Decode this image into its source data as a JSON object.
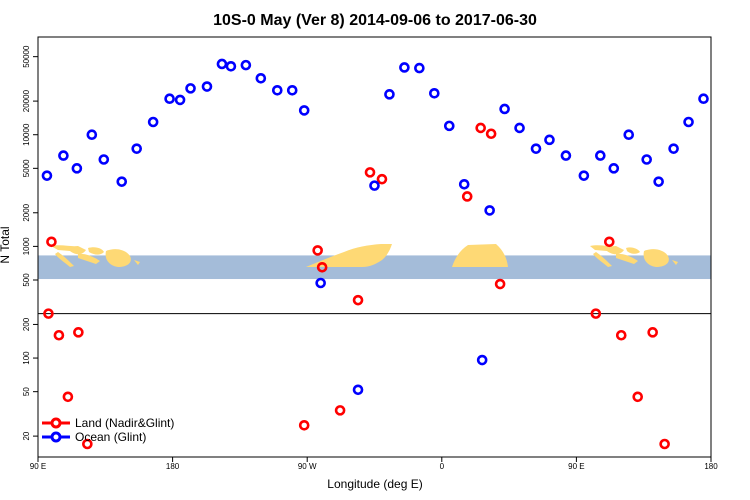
{
  "chart_data": {
    "type": "scatter",
    "title": "10S-0 May (Ver 8)   2014-09-06 to 2017-06-30",
    "xlabel": "Longitude (deg E)",
    "ylabel": "N Total",
    "yscale": "log",
    "xlim": [
      90,
      540
    ],
    "ylim": [
      13,
      75000
    ],
    "x_ticks": [
      {
        "value": 90,
        "label": "90 E"
      },
      {
        "value": 180,
        "label": "180"
      },
      {
        "value": 270,
        "label": "90 W"
      },
      {
        "value": 360,
        "label": "0"
      },
      {
        "value": 450,
        "label": "90 E"
      },
      {
        "value": 540,
        "label": "180"
      }
    ],
    "y_ticks": [
      {
        "value": 20,
        "label": "20"
      },
      {
        "value": 50,
        "label": "50"
      },
      {
        "value": 100,
        "label": "100"
      },
      {
        "value": 200,
        "label": "200"
      },
      {
        "value": 500,
        "label": "500"
      },
      {
        "value": 1000,
        "label": "1000"
      },
      {
        "value": 2000,
        "label": "2000"
      },
      {
        "value": 5000,
        "label": "5000"
      },
      {
        "value": 10000,
        "label": "10000"
      },
      {
        "value": 20000,
        "label": "20000"
      },
      {
        "value": 50000,
        "label": "50000"
      }
    ],
    "reference_line": 250,
    "map_band": {
      "y_low": 510,
      "y_high": 830,
      "ocean_color": "#a4bcd9",
      "land_color": "#fed975"
    },
    "legend": {
      "position": "bottom-left"
    },
    "series": [
      {
        "name": "Land (Nadir&Glint)",
        "color": "#ff0000",
        "points": [
          {
            "x": 97,
            "y": 250
          },
          {
            "x": 99,
            "y": 1100
          },
          {
            "x": 104,
            "y": 160
          },
          {
            "x": 110,
            "y": 45
          },
          {
            "x": 117,
            "y": 170
          },
          {
            "x": 123,
            "y": 17
          },
          {
            "x": 268,
            "y": 25
          },
          {
            "x": 277,
            "y": 920
          },
          {
            "x": 280,
            "y": 650
          },
          {
            "x": 292,
            "y": 34
          },
          {
            "x": 304,
            "y": 330
          },
          {
            "x": 312,
            "y": 4600
          },
          {
            "x": 320,
            "y": 4000
          },
          {
            "x": 377,
            "y": 2800
          },
          {
            "x": 386,
            "y": 11500
          },
          {
            "x": 393,
            "y": 10200
          },
          {
            "x": 399,
            "y": 460
          },
          {
            "x": 463,
            "y": 250
          },
          {
            "x": 472,
            "y": 1100
          },
          {
            "x": 480,
            "y": 160
          },
          {
            "x": 491,
            "y": 45
          },
          {
            "x": 501,
            "y": 170
          },
          {
            "x": 509,
            "y": 17
          }
        ]
      },
      {
        "name": "Ocean (Glint)",
        "color": "#0000ff",
        "points": [
          {
            "x": 96,
            "y": 4300
          },
          {
            "x": 107,
            "y": 6500
          },
          {
            "x": 116,
            "y": 5000
          },
          {
            "x": 126,
            "y": 10000
          },
          {
            "x": 134,
            "y": 6000
          },
          {
            "x": 146,
            "y": 3800
          },
          {
            "x": 156,
            "y": 7500
          },
          {
            "x": 167,
            "y": 13000
          },
          {
            "x": 178,
            "y": 21000
          },
          {
            "x": 185,
            "y": 20500
          },
          {
            "x": 192,
            "y": 26000
          },
          {
            "x": 203,
            "y": 27000
          },
          {
            "x": 213,
            "y": 43000
          },
          {
            "x": 219,
            "y": 41000
          },
          {
            "x": 229,
            "y": 42000
          },
          {
            "x": 239,
            "y": 32000
          },
          {
            "x": 250,
            "y": 25000
          },
          {
            "x": 260,
            "y": 25000
          },
          {
            "x": 268,
            "y": 16500
          },
          {
            "x": 279,
            "y": 470
          },
          {
            "x": 304,
            "y": 52
          },
          {
            "x": 315,
            "y": 3500
          },
          {
            "x": 325,
            "y": 23000
          },
          {
            "x": 335,
            "y": 40000
          },
          {
            "x": 345,
            "y": 39500
          },
          {
            "x": 355,
            "y": 23500
          },
          {
            "x": 365,
            "y": 12000
          },
          {
            "x": 375,
            "y": 3600
          },
          {
            "x": 387,
            "y": 96
          },
          {
            "x": 392,
            "y": 2100
          },
          {
            "x": 402,
            "y": 17000
          },
          {
            "x": 412,
            "y": 11500
          },
          {
            "x": 423,
            "y": 7500
          },
          {
            "x": 432,
            "y": 9000
          },
          {
            "x": 443,
            "y": 6500
          },
          {
            "x": 455,
            "y": 4300
          },
          {
            "x": 466,
            "y": 6500
          },
          {
            "x": 475,
            "y": 5000
          },
          {
            "x": 485,
            "y": 10000
          },
          {
            "x": 497,
            "y": 6000
          },
          {
            "x": 505,
            "y": 3800
          },
          {
            "x": 515,
            "y": 7500
          },
          {
            "x": 525,
            "y": 13000
          },
          {
            "x": 535,
            "y": 21000
          }
        ]
      }
    ]
  }
}
